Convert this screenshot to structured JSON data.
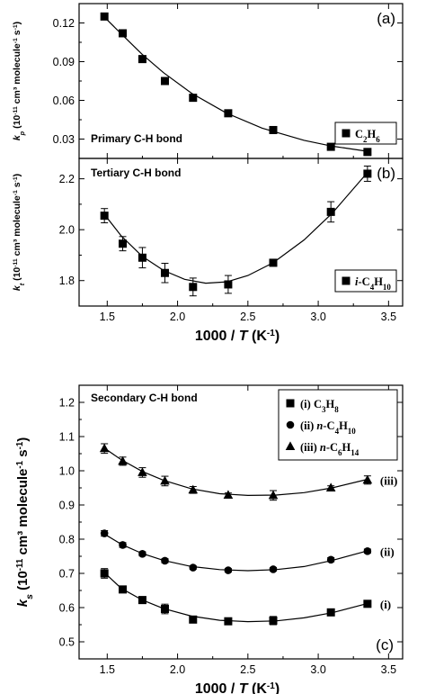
{
  "chart_data": [
    {
      "id": "a",
      "type": "scatter",
      "panel_label": "(a)",
      "annotation": "Primary C-H bond",
      "ylabel": {
        "base": "k",
        "sub": "p",
        "rest": " (10",
        "sup": "-11",
        "units": " cm³ molecule",
        "sup2": "-1",
        "end": " s",
        "sup3": "-1",
        "close": ")"
      },
      "ylim": [
        0.015,
        0.135
      ],
      "yticks": [
        0.03,
        0.06,
        0.09,
        0.12
      ],
      "ytick_labels": [
        "0.03",
        "0.06",
        "0.09",
        "0.12"
      ],
      "xlim": [
        1.3,
        3.6
      ],
      "xticks": [
        1.5,
        2.0,
        2.5,
        3.0,
        3.5
      ],
      "marker": "square",
      "legend": {
        "prefix": "",
        "formula": [
          [
            "C",
            "2"
          ],
          [
            "H",
            "6"
          ]
        ],
        "italic_prefix": ""
      },
      "series": [
        {
          "x": [
            1.48,
            1.61,
            1.75,
            1.91,
            2.11,
            2.36,
            2.68,
            3.09,
            3.35
          ],
          "y": [
            0.125,
            0.112,
            0.092,
            0.075,
            0.062,
            0.05,
            0.037,
            0.024,
            0.02
          ],
          "err": [
            0.0015,
            0.0015,
            0.0015,
            0.0015,
            0.0015,
            0.0015,
            0.0015,
            0.0015,
            0.0015
          ],
          "fit": [
            [
              1.48,
              0.1245
            ],
            [
              1.6,
              0.1115
            ],
            [
              1.75,
              0.0955
            ],
            [
              1.9,
              0.0815
            ],
            [
              2.1,
              0.0655
            ],
            [
              2.35,
              0.05
            ],
            [
              2.6,
              0.0385
            ],
            [
              2.9,
              0.029
            ],
            [
              3.1,
              0.0245
            ],
            [
              3.35,
              0.0205
            ]
          ]
        }
      ]
    },
    {
      "id": "b",
      "type": "scatter",
      "panel_label": "(b)",
      "annotation": "Tertiary C-H bond",
      "ylabel": {
        "base": "k",
        "sub": "t",
        "rest": " (10",
        "sup": "-11",
        "units": " cm³ molecule",
        "sup2": "-1",
        "end": " s",
        "sup3": "-1",
        "close": ")"
      },
      "ylim": [
        1.7,
        2.28
      ],
      "yticks": [
        1.8,
        2.0,
        2.2
      ],
      "ytick_labels": [
        "1.8",
        "2.0",
        "2.2"
      ],
      "xlim": [
        1.3,
        3.6
      ],
      "xticks": [
        1.5,
        2.0,
        2.5,
        3.0,
        3.5
      ],
      "xtick_labels": [
        "1.5",
        "2.0",
        "2.5",
        "3.0",
        "3.5"
      ],
      "xlabel": {
        "pre": "1000 / ",
        "it": "T",
        "post": " (K",
        "sup": "-1",
        "close": ")"
      },
      "marker": "square",
      "legend": {
        "italic_prefix": "i",
        "prefix": "-",
        "formula": [
          [
            "C",
            "4"
          ],
          [
            "H",
            "10"
          ]
        ]
      },
      "series": [
        {
          "x": [
            1.48,
            1.61,
            1.75,
            1.91,
            2.11,
            2.36,
            2.68,
            3.09,
            3.35
          ],
          "y": [
            2.055,
            1.945,
            1.89,
            1.83,
            1.775,
            1.785,
            1.87,
            2.07,
            2.22
          ],
          "err": [
            0.028,
            0.028,
            0.04,
            0.038,
            0.035,
            0.035,
            0.01,
            0.04,
            0.03
          ],
          "fit": [
            [
              1.48,
              2.06
            ],
            [
              1.6,
              1.975
            ],
            [
              1.75,
              1.895
            ],
            [
              1.9,
              1.84
            ],
            [
              2.05,
              1.805
            ],
            [
              2.2,
              1.79
            ],
            [
              2.35,
              1.795
            ],
            [
              2.5,
              1.82
            ],
            [
              2.68,
              1.87
            ],
            [
              2.9,
              1.96
            ],
            [
              3.1,
              2.065
            ],
            [
              3.35,
              2.225
            ]
          ]
        }
      ]
    },
    {
      "id": "c",
      "type": "scatter",
      "panel_label": "(c)",
      "annotation": "Secondary C-H bond",
      "ylabel": {
        "base": "k",
        "sub": "s",
        "rest": " (10",
        "sup": "-11",
        "units": " cm³ molecule",
        "sup2": "-1",
        "end": " s",
        "sup3": "-1",
        "close": ")"
      },
      "ylim": [
        0.45,
        1.25
      ],
      "yticks": [
        0.5,
        0.6,
        0.7,
        0.8,
        0.9,
        1.0,
        1.1,
        1.2
      ],
      "ytick_labels": [
        "0.5",
        "0.6",
        "0.7",
        "0.8",
        "0.9",
        "1.0",
        "1.1",
        "1.2"
      ],
      "xlim": [
        1.3,
        3.6
      ],
      "xticks": [
        1.5,
        2.0,
        2.5,
        3.0,
        3.5
      ],
      "xtick_labels": [
        "1.5",
        "2.0",
        "2.5",
        "3.0",
        "3.5"
      ],
      "xlabel": {
        "pre": "1000 / ",
        "it": "T",
        "post": " (K",
        "sup": "-1",
        "close": ")"
      },
      "series": [
        {
          "name_prefix": "(i) ",
          "italic_prefix": "",
          "dash": "",
          "formula": [
            [
              "C",
              "3"
            ],
            [
              "H",
              "8"
            ]
          ],
          "marker": "square",
          "label": "(i)",
          "x": [
            1.48,
            1.61,
            1.75,
            1.91,
            2.11,
            2.36,
            2.68,
            3.09,
            3.35
          ],
          "y": [
            0.7,
            0.653,
            0.622,
            0.596,
            0.565,
            0.56,
            0.562,
            0.586,
            0.611
          ],
          "err": [
            0.014,
            0.008,
            0.01,
            0.014,
            0.006,
            0.008,
            0.012,
            0.008,
            0.008
          ],
          "fit": [
            [
              1.48,
              0.702
            ],
            [
              1.6,
              0.656
            ],
            [
              1.75,
              0.622
            ],
            [
              1.9,
              0.597
            ],
            [
              2.1,
              0.575
            ],
            [
              2.3,
              0.563
            ],
            [
              2.5,
              0.559
            ],
            [
              2.7,
              0.561
            ],
            [
              2.9,
              0.57
            ],
            [
              3.1,
              0.585
            ],
            [
              3.35,
              0.612
            ]
          ]
        },
        {
          "name_prefix": "(ii) ",
          "italic_prefix": "n",
          "dash": "-",
          "formula": [
            [
              "C",
              "4"
            ],
            [
              "H",
              "10"
            ]
          ],
          "marker": "circle",
          "label": "(ii)",
          "x": [
            1.48,
            1.61,
            1.75,
            1.91,
            2.11,
            2.36,
            2.68,
            3.09,
            3.35
          ],
          "y": [
            0.817,
            0.783,
            0.757,
            0.737,
            0.717,
            0.709,
            0.712,
            0.74,
            0.765
          ],
          "err": [
            0.008,
            0.007,
            0.006,
            0.006,
            0.005,
            0.005,
            0.005,
            0.006,
            0.006
          ],
          "fit": [
            [
              1.48,
              0.815
            ],
            [
              1.6,
              0.785
            ],
            [
              1.75,
              0.758
            ],
            [
              1.9,
              0.738
            ],
            [
              2.1,
              0.72
            ],
            [
              2.3,
              0.711
            ],
            [
              2.5,
              0.708
            ],
            [
              2.7,
              0.711
            ],
            [
              2.9,
              0.72
            ],
            [
              3.1,
              0.738
            ],
            [
              3.35,
              0.766
            ]
          ]
        },
        {
          "name_prefix": "(iii) ",
          "italic_prefix": "n",
          "dash": "-",
          "formula": [
            [
              "C",
              "6"
            ],
            [
              "H",
              "14"
            ]
          ],
          "marker": "triangle",
          "label": "(iii)",
          "x": [
            1.48,
            1.61,
            1.75,
            1.91,
            2.11,
            2.36,
            2.68,
            3.09,
            3.35
          ],
          "y": [
            1.065,
            1.028,
            0.995,
            0.97,
            0.944,
            0.929,
            0.928,
            0.95,
            0.973
          ],
          "err": [
            0.014,
            0.012,
            0.014,
            0.014,
            0.01,
            0.006,
            0.014,
            0.006,
            0.012
          ],
          "fit": [
            [
              1.48,
              1.066
            ],
            [
              1.6,
              1.032
            ],
            [
              1.75,
              0.998
            ],
            [
              1.9,
              0.972
            ],
            [
              2.1,
              0.947
            ],
            [
              2.3,
              0.933
            ],
            [
              2.5,
              0.928
            ],
            [
              2.7,
              0.929
            ],
            [
              2.9,
              0.936
            ],
            [
              3.1,
              0.95
            ],
            [
              3.35,
              0.975
            ]
          ]
        }
      ]
    }
  ]
}
